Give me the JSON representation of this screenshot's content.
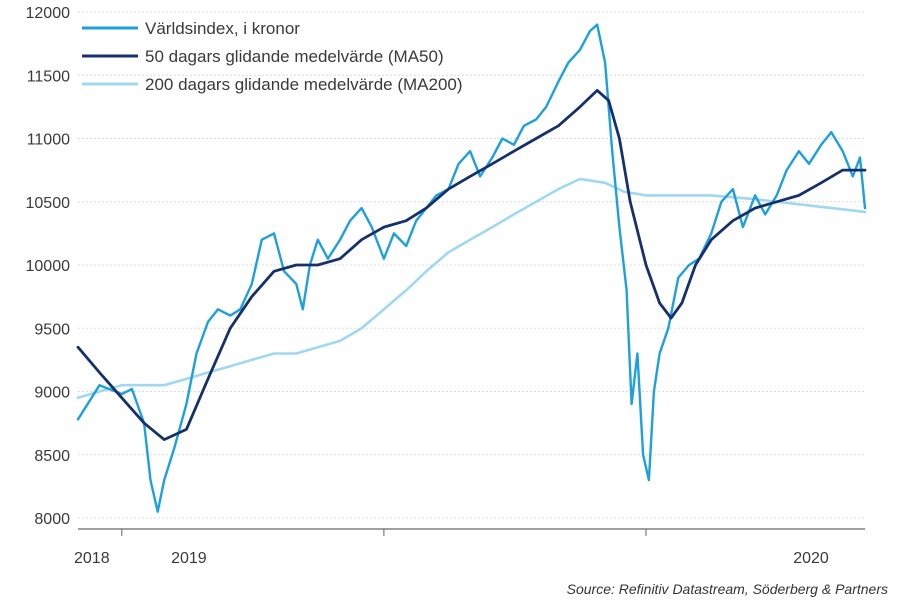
{
  "source_text": "Source: Refinitiv Datastream, Söderberg & Partners",
  "colors": {
    "index": "#1ea0dc",
    "ma50": "#15306b",
    "ma200": "#9fd8f0",
    "grid": "#dcdcdc",
    "axis": "#666666"
  },
  "chart_data": {
    "type": "line",
    "ylim": [
      8000,
      12000
    ],
    "yticks": [
      8000,
      8500,
      9000,
      9500,
      10000,
      10500,
      11000,
      11500,
      12000
    ],
    "x_range": [
      "2017-11",
      "2020-11"
    ],
    "x_tick_labels": [
      "2018",
      "2019",
      "2020"
    ],
    "x_ticks": [
      "2018-01",
      "2019-01",
      "2020-01"
    ],
    "legend_placement": "top-left",
    "grid": "horizontal",
    "series": [
      {
        "key": "index",
        "name": "Världsindex, i kronor",
        "points": [
          [
            "2017-11",
            8780
          ],
          [
            "2017-12",
            9050
          ],
          [
            "2018-01",
            8980
          ],
          [
            "2018-01-15",
            9020
          ],
          [
            "2018-02",
            8750
          ],
          [
            "2018-02-10",
            8300
          ],
          [
            "2018-02-20",
            8050
          ],
          [
            "2018-03",
            8300
          ],
          [
            "2018-03-15",
            8550
          ],
          [
            "2018-04",
            8900
          ],
          [
            "2018-04-15",
            9300
          ],
          [
            "2018-05",
            9550
          ],
          [
            "2018-05-15",
            9650
          ],
          [
            "2018-06",
            9600
          ],
          [
            "2018-06-15",
            9650
          ],
          [
            "2018-07",
            9850
          ],
          [
            "2018-07-15",
            10200
          ],
          [
            "2018-08",
            10250
          ],
          [
            "2018-08-15",
            9950
          ],
          [
            "2018-09",
            9850
          ],
          [
            "2018-09-10",
            9650
          ],
          [
            "2018-09-20",
            10000
          ],
          [
            "2018-10",
            10200
          ],
          [
            "2018-10-15",
            10050
          ],
          [
            "2018-11",
            10200
          ],
          [
            "2018-11-15",
            10350
          ],
          [
            "2018-12",
            10450
          ],
          [
            "2018-12-15",
            10300
          ],
          [
            "2019-01",
            10050
          ],
          [
            "2019-01-15",
            10250
          ],
          [
            "2019-02",
            10150
          ],
          [
            "2019-02-15",
            10350
          ],
          [
            "2019-03",
            10450
          ],
          [
            "2019-03-15",
            10550
          ],
          [
            "2019-04",
            10600
          ],
          [
            "2019-04-15",
            10800
          ],
          [
            "2019-05",
            10900
          ],
          [
            "2019-05-15",
            10700
          ],
          [
            "2019-06",
            10850
          ],
          [
            "2019-06-15",
            11000
          ],
          [
            "2019-07",
            10950
          ],
          [
            "2019-07-15",
            11100
          ],
          [
            "2019-08",
            11150
          ],
          [
            "2019-08-15",
            11250
          ],
          [
            "2019-09",
            11450
          ],
          [
            "2019-09-15",
            11600
          ],
          [
            "2019-10",
            11700
          ],
          [
            "2019-10-15",
            11850
          ],
          [
            "2019-10-25",
            11900
          ],
          [
            "2019-11-05",
            11600
          ],
          [
            "2019-11-15",
            10900
          ],
          [
            "2019-11-25",
            10300
          ],
          [
            "2019-12-05",
            9800
          ],
          [
            "2019-12-12",
            8900
          ],
          [
            "2019-12-20",
            9300
          ],
          [
            "2019-12-28",
            8500
          ],
          [
            "2020-01-05",
            8300
          ],
          [
            "2020-01-12",
            9000
          ],
          [
            "2020-01-20",
            9300
          ],
          [
            "2020-02",
            9500
          ],
          [
            "2020-02-15",
            9900
          ],
          [
            "2020-03",
            10000
          ],
          [
            "2020-03-15",
            10050
          ],
          [
            "2020-04",
            10250
          ],
          [
            "2020-04-15",
            10500
          ],
          [
            "2020-05",
            10600
          ],
          [
            "2020-05-15",
            10300
          ],
          [
            "2020-06",
            10550
          ],
          [
            "2020-06-15",
            10400
          ],
          [
            "2020-07",
            10550
          ],
          [
            "2020-07-15",
            10750
          ],
          [
            "2020-08",
            10900
          ],
          [
            "2020-08-15",
            10800
          ],
          [
            "2020-09",
            10950
          ],
          [
            "2020-09-15",
            11050
          ],
          [
            "2020-10",
            10900
          ],
          [
            "2020-10-15",
            10700
          ],
          [
            "2020-10-25",
            10850
          ],
          [
            "2020-11",
            10450
          ]
        ]
      },
      {
        "key": "ma50",
        "name": "50 dagars glidande medelvärde (MA50)",
        "points": [
          [
            "2017-11",
            9350
          ],
          [
            "2017-12",
            9150
          ],
          [
            "2018-01",
            8950
          ],
          [
            "2018-02",
            8750
          ],
          [
            "2018-03",
            8620
          ],
          [
            "2018-04",
            8700
          ],
          [
            "2018-05",
            9100
          ],
          [
            "2018-06",
            9500
          ],
          [
            "2018-07",
            9750
          ],
          [
            "2018-08",
            9950
          ],
          [
            "2018-09",
            10000
          ],
          [
            "2018-10",
            10000
          ],
          [
            "2018-11",
            10050
          ],
          [
            "2018-12",
            10200
          ],
          [
            "2019-01",
            10300
          ],
          [
            "2019-02",
            10350
          ],
          [
            "2019-03",
            10450
          ],
          [
            "2019-04",
            10600
          ],
          [
            "2019-05",
            10700
          ],
          [
            "2019-06",
            10800
          ],
          [
            "2019-07",
            10900
          ],
          [
            "2019-08",
            11000
          ],
          [
            "2019-09",
            11100
          ],
          [
            "2019-10",
            11250
          ],
          [
            "2019-10-25",
            11380
          ],
          [
            "2019-11-10",
            11300
          ],
          [
            "2019-11-25",
            11000
          ],
          [
            "2019-12-10",
            10500
          ],
          [
            "2020-01-01",
            10000
          ],
          [
            "2020-01-20",
            9700
          ],
          [
            "2020-02-05",
            9580
          ],
          [
            "2020-02-20",
            9700
          ],
          [
            "2020-03-10",
            10000
          ],
          [
            "2020-04",
            10200
          ],
          [
            "2020-05",
            10350
          ],
          [
            "2020-06",
            10450
          ],
          [
            "2020-07",
            10500
          ],
          [
            "2020-08",
            10550
          ],
          [
            "2020-09",
            10650
          ],
          [
            "2020-10",
            10750
          ],
          [
            "2020-11",
            10750
          ]
        ]
      },
      {
        "key": "ma200",
        "name": "200 dagars glidande medelvärde (MA200)",
        "points": [
          [
            "2017-11",
            8950
          ],
          [
            "2017-12",
            9000
          ],
          [
            "2018-01",
            9050
          ],
          [
            "2018-02",
            9050
          ],
          [
            "2018-03",
            9050
          ],
          [
            "2018-04",
            9100
          ],
          [
            "2018-05",
            9150
          ],
          [
            "2018-06",
            9200
          ],
          [
            "2018-07",
            9250
          ],
          [
            "2018-08",
            9300
          ],
          [
            "2018-09",
            9300
          ],
          [
            "2018-10",
            9350
          ],
          [
            "2018-11",
            9400
          ],
          [
            "2018-12",
            9500
          ],
          [
            "2019-01",
            9650
          ],
          [
            "2019-02",
            9800
          ],
          [
            "2019-03",
            9950
          ],
          [
            "2019-04",
            10100
          ],
          [
            "2019-05",
            10200
          ],
          [
            "2019-06",
            10300
          ],
          [
            "2019-07",
            10400
          ],
          [
            "2019-08",
            10500
          ],
          [
            "2019-09",
            10600
          ],
          [
            "2019-10",
            10680
          ],
          [
            "2019-11-05",
            10650
          ],
          [
            "2019-12",
            10580
          ],
          [
            "2020-01",
            10550
          ],
          [
            "2020-02",
            10550
          ],
          [
            "2020-04",
            10550
          ],
          [
            "2020-06",
            10520
          ],
          [
            "2020-08",
            10480
          ],
          [
            "2020-10",
            10440
          ],
          [
            "2020-11",
            10420
          ]
        ]
      }
    ]
  }
}
